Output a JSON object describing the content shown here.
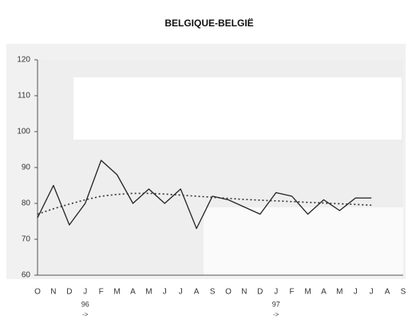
{
  "chart_data": {
    "type": "line",
    "title": "BELGIQUE-BELGIË",
    "categories": [
      "O",
      "N",
      "D",
      "J",
      "F",
      "M",
      "A",
      "M",
      "J",
      "J",
      "A",
      "S",
      "O",
      "N",
      "D",
      "J",
      "F",
      "M",
      "A",
      "M",
      "J",
      "J",
      "A",
      "S"
    ],
    "series": [
      {
        "color": "#222222",
        "style": "solid",
        "values": [
          76,
          85,
          74,
          80,
          92,
          88,
          80,
          84,
          80,
          84,
          73,
          82,
          81,
          79,
          77,
          83,
          82,
          77,
          81,
          78,
          81.5,
          81.5,
          null,
          null
        ]
      },
      {
        "color": "#333333",
        "style": "dotted",
        "values": [
          77,
          78.5,
          79.8,
          81,
          82,
          82.5,
          82.8,
          82.8,
          82.6,
          82.3,
          82,
          81.7,
          81.4,
          81.1,
          80.9,
          80.7,
          80.5,
          80.3,
          80.1,
          79.9,
          79.7,
          79.5,
          null,
          null
        ]
      }
    ],
    "ylim": [
      60,
      120
    ],
    "yticks": [
      60,
      70,
      80,
      90,
      100,
      110,
      120
    ],
    "grid": false,
    "year_markers": [
      {
        "category_index": 3,
        "label": "96",
        "arrow": "->"
      },
      {
        "category_index": 15,
        "label": "97",
        "arrow": "->"
      }
    ]
  }
}
